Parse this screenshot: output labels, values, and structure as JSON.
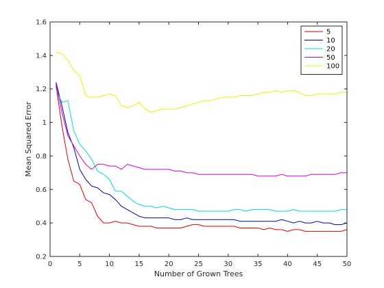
{
  "chart_data": {
    "type": "line",
    "title": "",
    "xlabel": "Number of Grown Trees",
    "ylabel": "Mean Squared Error",
    "xlim": [
      0,
      50
    ],
    "ylim": [
      0.2,
      1.6
    ],
    "xticks": [
      0,
      5,
      10,
      15,
      20,
      25,
      30,
      35,
      40,
      45,
      50
    ],
    "yticks": [
      0.2,
      0.4,
      0.6,
      0.8,
      1,
      1.2,
      1.4,
      1.6
    ],
    "grid": false,
    "legend_position": "top-right",
    "x": [
      1,
      2,
      3,
      4,
      5,
      6,
      7,
      8,
      9,
      10,
      11,
      12,
      13,
      14,
      15,
      16,
      17,
      18,
      19,
      20,
      21,
      22,
      23,
      24,
      25,
      26,
      27,
      28,
      29,
      30,
      31,
      32,
      33,
      34,
      35,
      36,
      37,
      38,
      39,
      40,
      41,
      42,
      43,
      44,
      45,
      46,
      47,
      48,
      49,
      50
    ],
    "series": [
      {
        "name": "5",
        "color": "#d40000",
        "values": [
          1.22,
          0.98,
          0.78,
          0.65,
          0.63,
          0.54,
          0.52,
          0.44,
          0.4,
          0.4,
          0.41,
          0.4,
          0.4,
          0.39,
          0.38,
          0.38,
          0.38,
          0.37,
          0.37,
          0.37,
          0.37,
          0.37,
          0.38,
          0.39,
          0.39,
          0.38,
          0.38,
          0.38,
          0.38,
          0.38,
          0.38,
          0.37,
          0.37,
          0.37,
          0.37,
          0.36,
          0.37,
          0.36,
          0.36,
          0.35,
          0.36,
          0.36,
          0.35,
          0.35,
          0.35,
          0.35,
          0.35,
          0.35,
          0.35,
          0.36
        ]
      },
      {
        "name": "10",
        "color": "#0000a0",
        "values": [
          1.24,
          1.1,
          0.94,
          0.85,
          0.72,
          0.66,
          0.62,
          0.61,
          0.58,
          0.57,
          0.54,
          0.5,
          0.48,
          0.46,
          0.44,
          0.43,
          0.43,
          0.43,
          0.43,
          0.43,
          0.42,
          0.42,
          0.43,
          0.42,
          0.42,
          0.42,
          0.42,
          0.42,
          0.42,
          0.42,
          0.42,
          0.41,
          0.41,
          0.41,
          0.41,
          0.41,
          0.41,
          0.41,
          0.42,
          0.41,
          0.4,
          0.41,
          0.4,
          0.4,
          0.41,
          0.4,
          0.4,
          0.39,
          0.39,
          0.4
        ]
      },
      {
        "name": "20",
        "color": "#00d8d8",
        "values": [
          1.2,
          1.12,
          1.13,
          0.95,
          0.87,
          0.83,
          0.78,
          0.71,
          0.69,
          0.66,
          0.59,
          0.59,
          0.56,
          0.53,
          0.51,
          0.5,
          0.5,
          0.49,
          0.5,
          0.49,
          0.48,
          0.48,
          0.48,
          0.48,
          0.47,
          0.47,
          0.47,
          0.47,
          0.47,
          0.47,
          0.48,
          0.48,
          0.47,
          0.48,
          0.48,
          0.48,
          0.48,
          0.47,
          0.47,
          0.47,
          0.48,
          0.47,
          0.47,
          0.47,
          0.47,
          0.47,
          0.47,
          0.47,
          0.48,
          0.48
        ]
      },
      {
        "name": "50",
        "color": "#d000d0",
        "values": [
          1.23,
          1.06,
          0.92,
          0.86,
          0.8,
          0.75,
          0.72,
          0.75,
          0.75,
          0.74,
          0.74,
          0.72,
          0.75,
          0.74,
          0.73,
          0.72,
          0.72,
          0.72,
          0.72,
          0.72,
          0.71,
          0.71,
          0.7,
          0.7,
          0.69,
          0.69,
          0.69,
          0.69,
          0.69,
          0.69,
          0.69,
          0.69,
          0.69,
          0.69,
          0.68,
          0.68,
          0.68,
          0.68,
          0.69,
          0.68,
          0.68,
          0.68,
          0.68,
          0.69,
          0.69,
          0.69,
          0.69,
          0.69,
          0.7,
          0.7
        ]
      },
      {
        "name": "100",
        "color": "#f0f000",
        "values": [
          1.42,
          1.41,
          1.37,
          1.31,
          1.28,
          1.16,
          1.15,
          1.15,
          1.16,
          1.17,
          1.16,
          1.1,
          1.09,
          1.1,
          1.12,
          1.08,
          1.06,
          1.07,
          1.08,
          1.08,
          1.08,
          1.09,
          1.1,
          1.11,
          1.12,
          1.13,
          1.13,
          1.14,
          1.15,
          1.15,
          1.15,
          1.16,
          1.16,
          1.16,
          1.17,
          1.18,
          1.18,
          1.19,
          1.18,
          1.19,
          1.19,
          1.18,
          1.16,
          1.16,
          1.17,
          1.17,
          1.17,
          1.17,
          1.18,
          1.18
        ]
      }
    ]
  }
}
